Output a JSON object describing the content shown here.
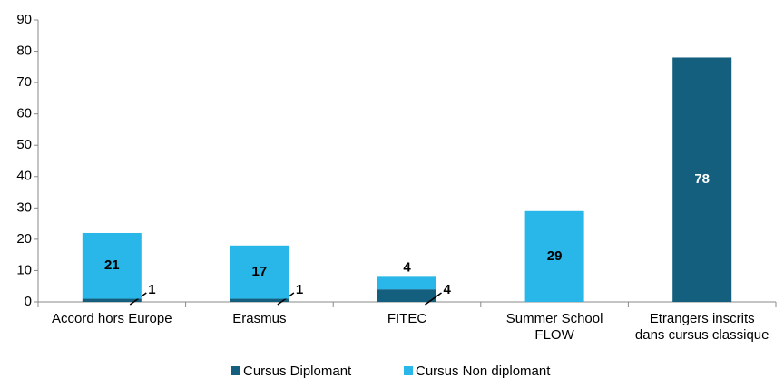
{
  "chart_data": {
    "type": "bar",
    "stacked": true,
    "categories": [
      "Accord hors Europe",
      "Erasmus",
      "FITEC",
      "Summer School FLOW",
      "Etrangers inscrits dans cursus classique"
    ],
    "series": [
      {
        "name": "Cursus Diplomant",
        "color": "#135f7d",
        "values": [
          1,
          1,
          4,
          null,
          78
        ]
      },
      {
        "name": "Cursus Non diplomant",
        "color": "#29b6e8",
        "values": [
          21,
          17,
          4,
          29,
          null
        ]
      }
    ],
    "ylim": [
      0,
      90
    ],
    "yticks": [
      0,
      10,
      20,
      30,
      40,
      50,
      60,
      70,
      80,
      90
    ],
    "grid": false,
    "legend": "bottom"
  }
}
